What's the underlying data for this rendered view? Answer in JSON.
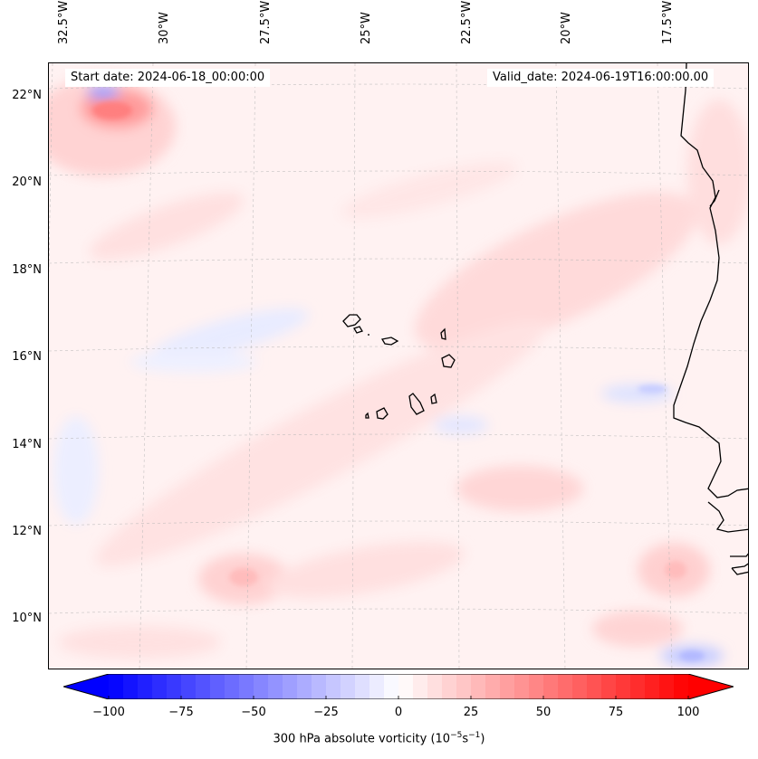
{
  "map": {
    "start_date_label": "Start date: 2024-06-18_00:00:00",
    "valid_date_label": "Valid_date: 2024-06-19T16:00:00.00",
    "lon_labels": [
      "32.5°W",
      "30°W",
      "27.5°W",
      "25°W",
      "22.5°W",
      "20°W",
      "17.5°W"
    ],
    "lat_labels": [
      "22°N",
      "20°N",
      "18°N",
      "16°N",
      "14°N",
      "12°N",
      "10°N"
    ],
    "field": "300 hPa absolute vorticity",
    "colors": {
      "negative": "#0000ff",
      "neutral": "#ffffff",
      "positive": "#ff0000",
      "coastline": "#000000"
    }
  },
  "colorbar": {
    "label_prefix": "300 hPa absolute vorticity (10",
    "label_exp1": "−5",
    "label_mid": "s",
    "label_exp2": "−1",
    "label_suffix": ")",
    "ticks": [
      "−100",
      "−75",
      "−50",
      "−25",
      "0",
      "25",
      "50",
      "75",
      "100"
    ],
    "range": [
      -100,
      100
    ],
    "levels": 40
  }
}
